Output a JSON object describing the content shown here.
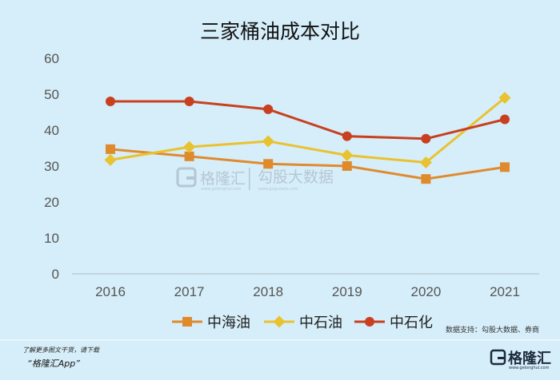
{
  "chart_data": {
    "type": "line",
    "title": "三家桶油成本对比",
    "categories": [
      "2016",
      "2017",
      "2018",
      "2019",
      "2020",
      "2021"
    ],
    "ylim": [
      0,
      60
    ],
    "yticks": [
      "0",
      "10",
      "20",
      "30",
      "40",
      "50",
      "60"
    ],
    "grid": false,
    "legend_position": "bottom",
    "series": [
      {
        "name": "中海油",
        "values": [
          34.7,
          32.7,
          30.6,
          30.0,
          26.4,
          29.7
        ],
        "color": "#e08a2e",
        "marker": "square"
      },
      {
        "name": "中石油",
        "values": [
          31.7,
          35.3,
          36.9,
          33.0,
          31.0,
          49.0
        ],
        "color": "#e9c22f",
        "marker": "diamond"
      },
      {
        "name": "中石化",
        "values": [
          48.0,
          48.0,
          45.8,
          38.3,
          37.6,
          43.0
        ],
        "color": "#c8401f",
        "marker": "circle"
      }
    ]
  },
  "source": "数据支持：勾股大数据、券商",
  "watermark": {
    "logo": "格隆汇",
    "logo_url": "www.gelonghui.com",
    "partner": "勾股大数据",
    "partner_url": "www.gogudata.com"
  },
  "footer": {
    "note": "了解更多图文干货，请下载",
    "app": "“格隆汇App”",
    "brand": "格隆汇",
    "brand_url": "www.gelonghui.com"
  }
}
